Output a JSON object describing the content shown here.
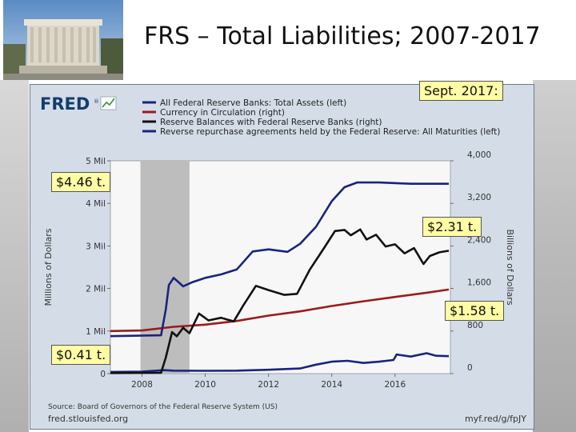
{
  "slide": {
    "title": "FRS – Total Liabilities; 2007-2017",
    "photo_icon": "federal-reserve-building-photo"
  },
  "callouts": {
    "sept_2017": "Sept. 2017:",
    "assets": "$4.46 t.",
    "reserves": "$2.31 t.",
    "currency": "$1.58 t.",
    "rrp": "$0.41 t."
  },
  "fred": {
    "logo_text": "FRED",
    "logo_mark": "®",
    "source": "Source: Board of Governors of the Federal Reserve System (US)",
    "site": "fred.stlouisfed.org",
    "short_url": "myf.red/g/fpJY"
  },
  "colors": {
    "assets": "#1a237e",
    "currency": "#9b1b1b",
    "reserves": "#111111",
    "rrp": "#1a237e",
    "recession": "#bdbdbd",
    "panel": "#d4dde7",
    "plot": "#f7f7f7",
    "callout": "#fffca6"
  },
  "chart_data": {
    "type": "line",
    "legend_position": "top",
    "grid": false,
    "x_ticks": [
      "2008",
      "2010",
      "2012",
      "2014",
      "2016"
    ],
    "x_range": [
      2007.0,
      2017.75
    ],
    "y_left": {
      "label": "Millions of Dollars",
      "range": [
        0,
        5000000
      ],
      "ticks": [
        {
          "value": 0,
          "label": "0"
        },
        {
          "value": 1000000,
          "label": "1 Mil"
        },
        {
          "value": 2000000,
          "label": "2 Mil"
        },
        {
          "value": 3000000,
          "label": "3 Mil"
        },
        {
          "value": 4000000,
          "label": "4 Mil"
        },
        {
          "value": 5000000,
          "label": "5 Mil"
        }
      ]
    },
    "y_right": {
      "label": "Billions of Dollars",
      "range": [
        0,
        4000
      ],
      "ticks": [
        {
          "value": 0,
          "label": "0"
        },
        {
          "value": 800,
          "label": "800"
        },
        {
          "value": 1600,
          "label": "1,600"
        },
        {
          "value": 2400,
          "label": "2,400"
        },
        {
          "value": 3200,
          "label": "3,200"
        },
        {
          "value": 4000,
          "label": "4,000"
        }
      ]
    },
    "recession": {
      "start": 2007.95,
      "end": 2009.5
    },
    "series": [
      {
        "name": "All Federal Reserve Banks: Total Assets (left)",
        "axis": "left",
        "points": [
          [
            2007.0,
            880000
          ],
          [
            2008.6,
            900000
          ],
          [
            2008.75,
            1500000
          ],
          [
            2008.85,
            2080000
          ],
          [
            2009.0,
            2250000
          ],
          [
            2009.3,
            2050000
          ],
          [
            2009.6,
            2150000
          ],
          [
            2010.0,
            2250000
          ],
          [
            2010.5,
            2330000
          ],
          [
            2011.0,
            2450000
          ],
          [
            2011.5,
            2870000
          ],
          [
            2012.0,
            2920000
          ],
          [
            2012.6,
            2860000
          ],
          [
            2013.0,
            3050000
          ],
          [
            2013.5,
            3450000
          ],
          [
            2014.0,
            4050000
          ],
          [
            2014.4,
            4380000
          ],
          [
            2014.8,
            4490000
          ],
          [
            2015.5,
            4490000
          ],
          [
            2016.5,
            4460000
          ],
          [
            2017.7,
            4460000
          ]
        ]
      },
      {
        "name": "Currency in Circulation (right)",
        "axis": "right",
        "points": [
          [
            2007.0,
            800
          ],
          [
            2008.0,
            810
          ],
          [
            2009.0,
            880
          ],
          [
            2010.0,
            920
          ],
          [
            2011.0,
            990
          ],
          [
            2012.0,
            1090
          ],
          [
            2013.0,
            1170
          ],
          [
            2014.0,
            1270
          ],
          [
            2015.0,
            1360
          ],
          [
            2016.0,
            1440
          ],
          [
            2017.0,
            1520
          ],
          [
            2017.7,
            1580
          ]
        ]
      },
      {
        "name": "Reserve Balances with Federal Reserve Banks (right)",
        "axis": "right",
        "points": [
          [
            2007.0,
            10
          ],
          [
            2008.6,
            15
          ],
          [
            2008.75,
            300
          ],
          [
            2008.95,
            780
          ],
          [
            2009.1,
            700
          ],
          [
            2009.3,
            860
          ],
          [
            2009.5,
            760
          ],
          [
            2009.8,
            1130
          ],
          [
            2010.1,
            1000
          ],
          [
            2010.5,
            1050
          ],
          [
            2010.9,
            980
          ],
          [
            2011.2,
            1280
          ],
          [
            2011.6,
            1650
          ],
          [
            2012.0,
            1570
          ],
          [
            2012.5,
            1480
          ],
          [
            2012.9,
            1500
          ],
          [
            2013.3,
            1950
          ],
          [
            2013.8,
            2400
          ],
          [
            2014.1,
            2680
          ],
          [
            2014.4,
            2700
          ],
          [
            2014.6,
            2600
          ],
          [
            2014.9,
            2710
          ],
          [
            2015.1,
            2520
          ],
          [
            2015.4,
            2610
          ],
          [
            2015.7,
            2390
          ],
          [
            2016.0,
            2430
          ],
          [
            2016.3,
            2260
          ],
          [
            2016.6,
            2360
          ],
          [
            2016.9,
            2060
          ],
          [
            2017.1,
            2210
          ],
          [
            2017.4,
            2280
          ],
          [
            2017.7,
            2310
          ]
        ]
      },
      {
        "name": "Reverse repurchase agreements held by the Federal Reserve: All Maturities (left)",
        "axis": "left",
        "points": [
          [
            2007.0,
            40000
          ],
          [
            2008.0,
            45000
          ],
          [
            2008.7,
            80000
          ],
          [
            2009.0,
            70000
          ],
          [
            2010.0,
            65000
          ],
          [
            2011.0,
            70000
          ],
          [
            2012.0,
            90000
          ],
          [
            2013.0,
            120000
          ],
          [
            2013.5,
            210000
          ],
          [
            2014.0,
            280000
          ],
          [
            2014.5,
            300000
          ],
          [
            2015.0,
            250000
          ],
          [
            2015.5,
            280000
          ],
          [
            2015.95,
            320000
          ],
          [
            2016.05,
            450000
          ],
          [
            2016.5,
            400000
          ],
          [
            2017.0,
            480000
          ],
          [
            2017.3,
            420000
          ],
          [
            2017.7,
            410000
          ]
        ]
      }
    ]
  }
}
